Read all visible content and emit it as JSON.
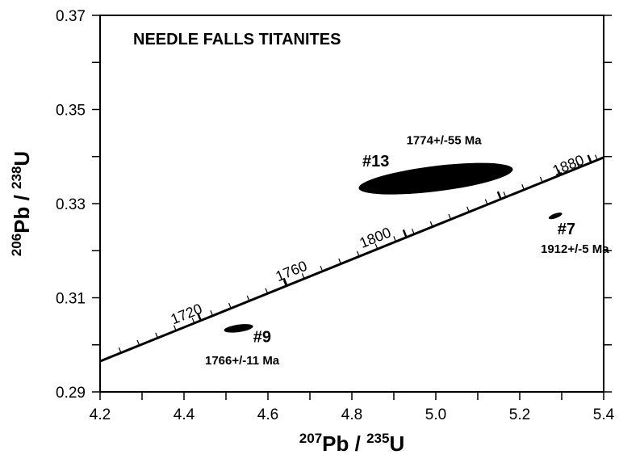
{
  "chart_data": {
    "type": "scatter",
    "title": "NEEDLE FALLS TITANITES",
    "xlabel": {
      "sup1": "207",
      "base1": "Pb / ",
      "sup2": "235",
      "base2": "U"
    },
    "ylabel": {
      "sup1": "206",
      "base1": "Pb / ",
      "sup2": "238",
      "base2": "U"
    },
    "xlim": [
      4.2,
      5.4
    ],
    "ylim": [
      0.29,
      0.37
    ],
    "x_ticks": [
      "4.2",
      "4.4",
      "4.6",
      "4.8",
      "5.0",
      "5.2",
      "5.4"
    ],
    "y_ticks": [
      "0.29",
      "0.31",
      "0.33",
      "0.35",
      "0.37"
    ],
    "concordia": {
      "points": [
        [
          4.2,
          0.2965
        ],
        [
          5.4,
          0.3398
        ]
      ],
      "age_labels": [
        {
          "text": "1720",
          "x": 4.41,
          "y": 0.3056
        },
        {
          "text": "1760",
          "x": 4.66,
          "y": 0.3147
        },
        {
          "text": "1800",
          "x": 4.86,
          "y": 0.3218
        },
        {
          "text": "1880",
          "x": 5.32,
          "y": 0.3372
        }
      ],
      "age_ticks": [
        {
          "x": 4.44,
          "y": 0.3052
        },
        {
          "x": 4.645,
          "y": 0.3126
        },
        {
          "x": 4.93,
          "y": 0.3229
        },
        {
          "x": 5.155,
          "y": 0.331
        },
        {
          "x": 5.37,
          "y": 0.3388
        }
      ]
    },
    "ellipses": [
      {
        "sample": "#13",
        "age": "1774+/-55 Ma",
        "cx": 5.0,
        "cy": 0.3353,
        "rx_data": 0.185,
        "ry_data": 0.0027,
        "angle": -7
      },
      {
        "sample": "#7",
        "age": "1912+/-5 Ma",
        "cx": 5.285,
        "cy": 0.3274,
        "rx_data": 0.017,
        "ry_data": 0.0005,
        "angle": -20
      },
      {
        "sample": "#9",
        "age": "1766+/-11 Ma",
        "cx": 4.53,
        "cy": 0.3035,
        "rx_data": 0.035,
        "ry_data": 0.0008,
        "angle": -8
      }
    ],
    "sample_labels": [
      {
        "text": "#13",
        "x": 4.825,
        "y": 0.3379
      },
      {
        "text": "#7",
        "x": 5.29,
        "y": 0.3235
      },
      {
        "text": "#9",
        "x": 4.565,
        "y": 0.3006
      }
    ],
    "age_annotations": [
      {
        "text": "1774+/-55 Ma",
        "x": 4.93,
        "y": 0.3426
      },
      {
        "text": "1912+/-5 Ma",
        "x": 5.25,
        "y": 0.3195
      },
      {
        "text": "1766+/-11 Ma",
        "x": 4.45,
        "y": 0.2958
      }
    ]
  }
}
